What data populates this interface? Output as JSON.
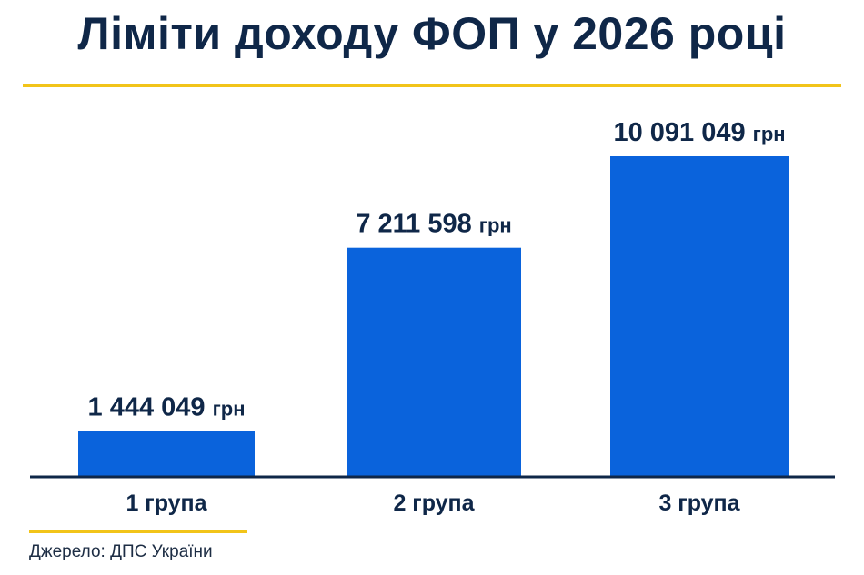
{
  "title": "Ліміти доходу ФОП у 2026 році",
  "source": "Джерело: ДПС України",
  "colors": {
    "bar": "#0a63dc",
    "text": "#0f2748",
    "accent": "#f2c419",
    "axis": "#0f2748"
  },
  "chart_data": {
    "type": "bar",
    "categories": [
      "1 група",
      "2 група",
      "3 група"
    ],
    "values": [
      1444049,
      7211598,
      10091049
    ],
    "value_labels": [
      "1 444 049",
      "7 211 598",
      "10 091 049"
    ],
    "unit": "грн",
    "title": "Ліміти доходу ФОП у 2026 році",
    "xlabel": "",
    "ylabel": "",
    "ylim": [
      0,
      10091049
    ],
    "grid": false,
    "legend": "none"
  }
}
